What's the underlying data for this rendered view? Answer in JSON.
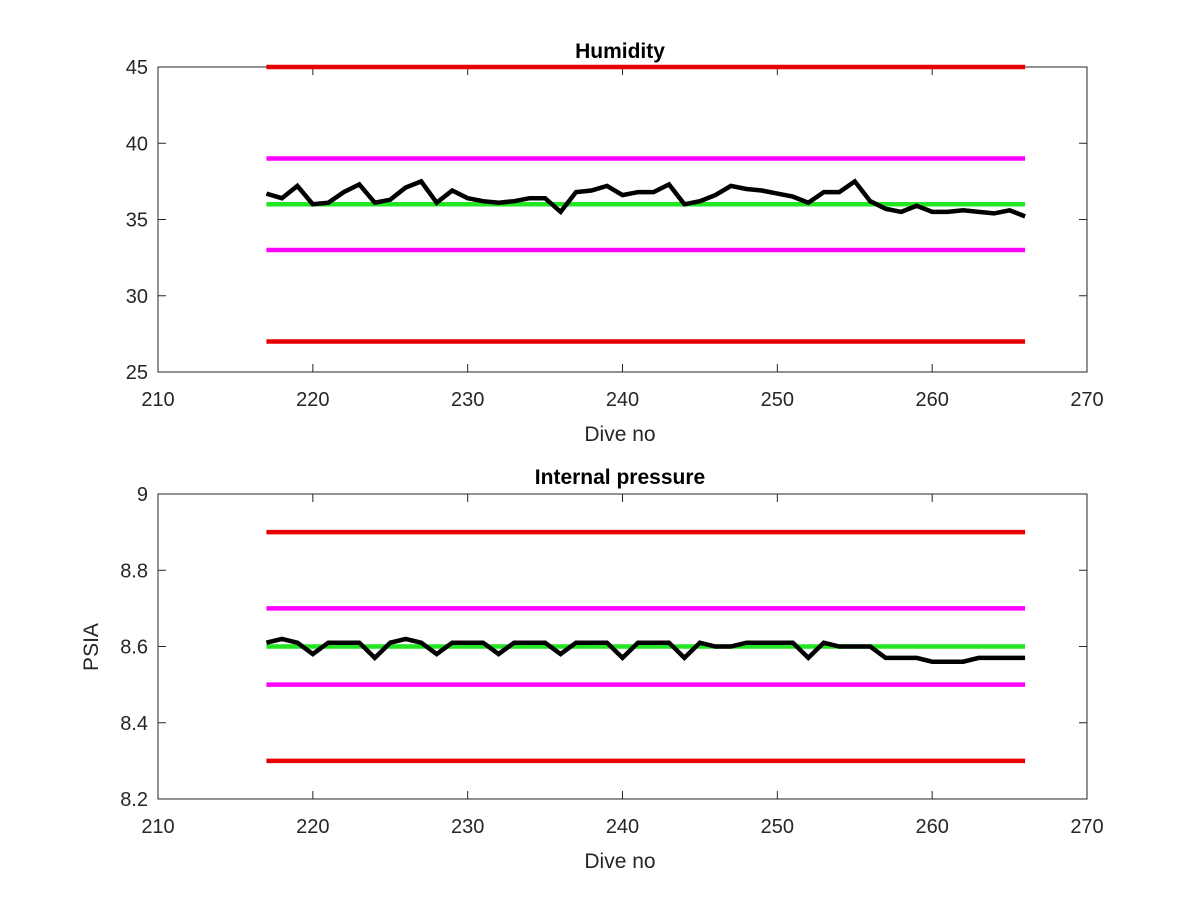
{
  "chart_data": [
    {
      "type": "line",
      "title": "Humidity",
      "xlabel": "Dive no",
      "ylabel": "",
      "xlim": [
        210,
        270
      ],
      "ylim": [
        25,
        45
      ],
      "xticks": [
        "210",
        "220",
        "230",
        "240",
        "250",
        "260",
        "270"
      ],
      "yticks": [
        "25",
        "30",
        "35",
        "40",
        "45"
      ],
      "grid": false,
      "series": [
        {
          "color": "#000000",
          "x": [
            217,
            218,
            219,
            220,
            221,
            222,
            223,
            224,
            225,
            226,
            227,
            228,
            229,
            230,
            231,
            232,
            233,
            234,
            235,
            236,
            237,
            238,
            239,
            240,
            241,
            242,
            243,
            244,
            245,
            246,
            247,
            248,
            249,
            250,
            251,
            252,
            253,
            254,
            255,
            256,
            257,
            258,
            259,
            260,
            261,
            262,
            263,
            264,
            265,
            266
          ],
          "y": [
            36.7,
            36.4,
            37.2,
            36.0,
            36.1,
            36.8,
            37.3,
            36.1,
            36.3,
            37.1,
            37.5,
            36.1,
            36.9,
            36.4,
            36.2,
            36.1,
            36.2,
            36.4,
            36.4,
            35.5,
            36.8,
            36.9,
            37.2,
            36.6,
            36.8,
            36.8,
            37.3,
            36.0,
            36.2,
            36.6,
            37.2,
            37.0,
            36.9,
            36.7,
            36.5,
            36.1,
            36.8,
            36.8,
            37.5,
            36.2,
            35.7,
            35.5,
            35.9,
            35.5,
            35.5,
            35.6,
            35.5,
            35.4,
            35.6,
            35.2
          ]
        },
        {
          "color": "#e60000",
          "x": [
            217,
            266
          ],
          "y": [
            45,
            45
          ]
        },
        {
          "color": "#e60000",
          "x": [
            217,
            266
          ],
          "y": [
            27,
            27
          ]
        },
        {
          "color": "#ff00ff",
          "x": [
            217,
            266
          ],
          "y": [
            39,
            39
          ]
        },
        {
          "color": "#ff00ff",
          "x": [
            217,
            266
          ],
          "y": [
            33,
            33
          ]
        },
        {
          "color": "#22e622",
          "x": [
            217,
            266
          ],
          "y": [
            36,
            36
          ]
        }
      ]
    },
    {
      "type": "line",
      "title": "Internal pressure",
      "xlabel": "Dive no",
      "ylabel": "PSIA",
      "xlim": [
        210,
        270
      ],
      "ylim": [
        8.2,
        9
      ],
      "xticks": [
        "210",
        "220",
        "230",
        "240",
        "250",
        "260",
        "270"
      ],
      "yticks": [
        "8.2",
        "8.4",
        "8.6",
        "8.8",
        "9"
      ],
      "grid": false,
      "series": [
        {
          "color": "#000000",
          "x": [
            217,
            218,
            219,
            220,
            221,
            222,
            223,
            224,
            225,
            226,
            227,
            228,
            229,
            230,
            231,
            232,
            233,
            234,
            235,
            236,
            237,
            238,
            239,
            240,
            241,
            242,
            243,
            244,
            245,
            246,
            247,
            248,
            249,
            250,
            251,
            252,
            253,
            254,
            255,
            256,
            257,
            258,
            259,
            260,
            261,
            262,
            263,
            264,
            265,
            266
          ],
          "y": [
            8.61,
            8.62,
            8.61,
            8.58,
            8.61,
            8.61,
            8.61,
            8.57,
            8.61,
            8.62,
            8.61,
            8.58,
            8.61,
            8.61,
            8.61,
            8.58,
            8.61,
            8.61,
            8.61,
            8.58,
            8.61,
            8.61,
            8.61,
            8.57,
            8.61,
            8.61,
            8.61,
            8.57,
            8.61,
            8.6,
            8.6,
            8.61,
            8.61,
            8.61,
            8.61,
            8.57,
            8.61,
            8.6,
            8.6,
            8.6,
            8.57,
            8.57,
            8.57,
            8.56,
            8.56,
            8.56,
            8.57,
            8.57,
            8.57,
            8.57
          ]
        },
        {
          "color": "#e60000",
          "x": [
            217,
            266
          ],
          "y": [
            8.9,
            8.9
          ]
        },
        {
          "color": "#e60000",
          "x": [
            217,
            266
          ],
          "y": [
            8.3,
            8.3
          ]
        },
        {
          "color": "#ff00ff",
          "x": [
            217,
            266
          ],
          "y": [
            8.7,
            8.7
          ]
        },
        {
          "color": "#ff00ff",
          "x": [
            217,
            266
          ],
          "y": [
            8.5,
            8.5
          ]
        },
        {
          "color": "#22e622",
          "x": [
            217,
            266
          ],
          "y": [
            8.6,
            8.6
          ]
        }
      ]
    }
  ]
}
